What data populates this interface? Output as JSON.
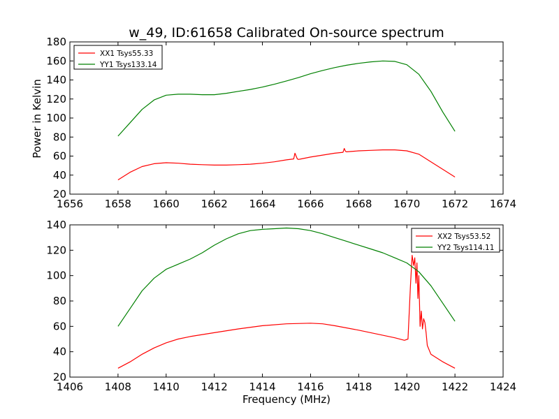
{
  "figure": {
    "title": "w_49, ID:61658 Calibrated On-source spectrum",
    "ylabel": "Power in Kelvin",
    "xlabel": "Frequency (MHz)"
  },
  "chart_data": [
    {
      "type": "line",
      "title": "w_49, ID:61658 Calibrated On-source spectrum",
      "xlabel": "",
      "ylabel": "Power in Kelvin",
      "xlim": [
        1656,
        1674
      ],
      "ylim": [
        20,
        180
      ],
      "xticks": [
        1656,
        1658,
        1660,
        1662,
        1664,
        1666,
        1668,
        1670,
        1672,
        1674
      ],
      "yticks": [
        20,
        40,
        60,
        80,
        100,
        120,
        140,
        160,
        180
      ],
      "legend_position": "top-left",
      "series": [
        {
          "name": "XX1 Tsys55.33",
          "color": "#ff0000",
          "x": [
            1658.0,
            1658.5,
            1659.0,
            1659.5,
            1660.0,
            1660.5,
            1661.0,
            1661.5,
            1662.0,
            1662.5,
            1663.0,
            1663.5,
            1664.0,
            1664.5,
            1665.0,
            1665.3,
            1665.35,
            1665.4,
            1665.45,
            1665.5,
            1665.6,
            1666.0,
            1666.5,
            1667.0,
            1667.35,
            1667.4,
            1667.45,
            1667.5,
            1668.0,
            1668.5,
            1669.0,
            1669.5,
            1670.0,
            1670.5,
            1671.0,
            1671.5,
            1672.0
          ],
          "y": [
            35,
            43,
            49,
            52,
            53,
            52.5,
            51.5,
            51,
            50.5,
            50.5,
            51,
            51.5,
            52.5,
            54,
            56,
            57,
            63,
            60,
            57,
            56.5,
            57,
            59,
            61,
            63,
            64,
            68,
            65,
            64.5,
            65.5,
            66,
            66.5,
            66.5,
            65.5,
            62,
            54,
            46,
            38
          ]
        },
        {
          "name": "YY1 Tsys133.14",
          "color": "#008000",
          "x": [
            1658.0,
            1658.5,
            1659.0,
            1659.5,
            1660.0,
            1660.5,
            1661.0,
            1661.5,
            1662.0,
            1662.5,
            1663.0,
            1663.5,
            1664.0,
            1664.5,
            1665.0,
            1665.5,
            1666.0,
            1666.5,
            1667.0,
            1667.5,
            1668.0,
            1668.5,
            1669.0,
            1669.5,
            1670.0,
            1670.5,
            1671.0,
            1671.5,
            1672.0
          ],
          "y": [
            81,
            95,
            109,
            119,
            124,
            125,
            125,
            124.5,
            124.5,
            126,
            128,
            130,
            132.5,
            135.5,
            139,
            142.5,
            146.5,
            150,
            153,
            155.5,
            157.5,
            159,
            160,
            159.5,
            156,
            146,
            128,
            106,
            86
          ]
        }
      ]
    },
    {
      "type": "line",
      "title": "",
      "xlabel": "Frequency (MHz)",
      "ylabel": "",
      "xlim": [
        1406,
        1424
      ],
      "ylim": [
        20,
        140
      ],
      "xticks": [
        1406,
        1408,
        1410,
        1412,
        1414,
        1416,
        1418,
        1420,
        1422,
        1424
      ],
      "yticks": [
        20,
        40,
        60,
        80,
        100,
        120,
        140
      ],
      "legend_position": "top-right",
      "series": [
        {
          "name": "XX2 Tsys53.52",
          "color": "#ff0000",
          "x": [
            1408.0,
            1408.5,
            1409.0,
            1409.5,
            1410.0,
            1410.5,
            1411.0,
            1412.0,
            1413.0,
            1414.0,
            1415.0,
            1416.0,
            1416.5,
            1417.0,
            1418.0,
            1419.0,
            1419.5,
            1419.9,
            1420.05,
            1420.15,
            1420.22,
            1420.28,
            1420.33,
            1420.38,
            1420.42,
            1420.46,
            1420.5,
            1420.55,
            1420.6,
            1420.65,
            1420.7,
            1420.75,
            1420.8,
            1420.85,
            1421.0,
            1421.5,
            1422.0
          ],
          "y": [
            27,
            32,
            38,
            43,
            47,
            50,
            52,
            55,
            58,
            60.5,
            62,
            62.5,
            62,
            60.5,
            57,
            53,
            51,
            49,
            50,
            92,
            116,
            108,
            114,
            94,
            110,
            82,
            100,
            60,
            72,
            58,
            66,
            63,
            55,
            45,
            38,
            32,
            27
          ]
        },
        {
          "name": "YY2 Tsys114.11",
          "color": "#008000",
          "x": [
            1408.0,
            1408.5,
            1409.0,
            1409.5,
            1410.0,
            1410.5,
            1411.0,
            1411.5,
            1412.0,
            1412.5,
            1413.0,
            1413.5,
            1414.0,
            1414.5,
            1415.0,
            1415.5,
            1416.0,
            1416.5,
            1417.0,
            1417.5,
            1418.0,
            1418.5,
            1419.0,
            1419.5,
            1420.0,
            1420.5,
            1421.0,
            1421.5,
            1422.0
          ],
          "y": [
            60,
            74,
            88,
            98,
            105,
            109,
            113,
            118,
            124,
            129,
            133,
            135.5,
            136.5,
            137,
            137.5,
            137,
            135.5,
            133,
            130,
            127,
            124,
            121,
            118,
            114,
            110,
            103,
            92,
            78,
            64
          ]
        }
      ]
    }
  ]
}
